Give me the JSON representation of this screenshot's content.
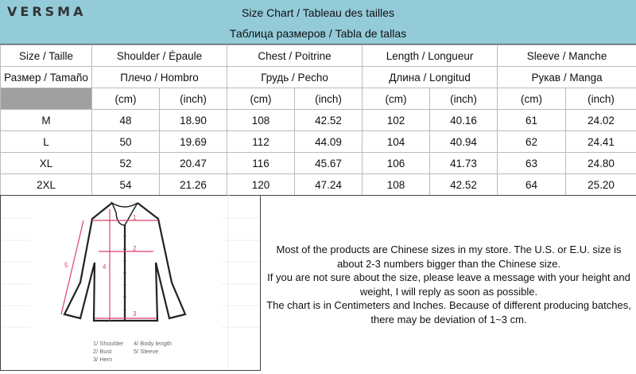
{
  "brand": "VERSMA",
  "header": {
    "title_line1": "Size Chart / Tableau des tailles",
    "title_line2": "Таблица размеров / Tabla de tallas"
  },
  "table": {
    "header1": [
      "Size / Taille",
      "Shoulder / Épaule",
      "Chest / Poitrine",
      "Length / Longueur",
      "Sleeve / Manche"
    ],
    "header2": [
      "Размер / Tamaño",
      "Плечо / Hombro",
      "Грудь / Pecho",
      "Длина / Longitud",
      "Рукав / Manga"
    ],
    "units": [
      "(cm)",
      "(inch)",
      "(cm)",
      "(inch)",
      "(cm)",
      "(inch)",
      "(cm)",
      "(inch)"
    ],
    "rows": [
      [
        "M",
        "48",
        "18.90",
        "108",
        "42.52",
        "102",
        "40.16",
        "61",
        "24.02"
      ],
      [
        "L",
        "50",
        "19.69",
        "112",
        "44.09",
        "104",
        "40.94",
        "62",
        "24.41"
      ],
      [
        "XL",
        "52",
        "20.47",
        "116",
        "45.67",
        "106",
        "41.73",
        "63",
        "24.80"
      ],
      [
        "2XL",
        "54",
        "21.26",
        "120",
        "47.24",
        "108",
        "42.52",
        "64",
        "25.20"
      ]
    ]
  },
  "diagram": {
    "markers": [
      "1",
      "2",
      "3",
      "4",
      "5"
    ],
    "legend": [
      "1/ Shoulder",
      "2/ Bust",
      "3/ Hem",
      "4/ Body length",
      "5/ Sleeve"
    ],
    "measure_color": "#e0406a"
  },
  "note": [
    "Most of the products are Chinese sizes in my store. The U.S. or E.U. size is",
    "about 2-3 numbers bigger than the Chinese size.",
    "If you are not sure about the size, please leave a message with your height and",
    "weight, I will reply as soon as possible.",
    "The chart is in Centimeters and Inches. Because of different producing batches,",
    "there may be deviation of 1~3 cm."
  ]
}
